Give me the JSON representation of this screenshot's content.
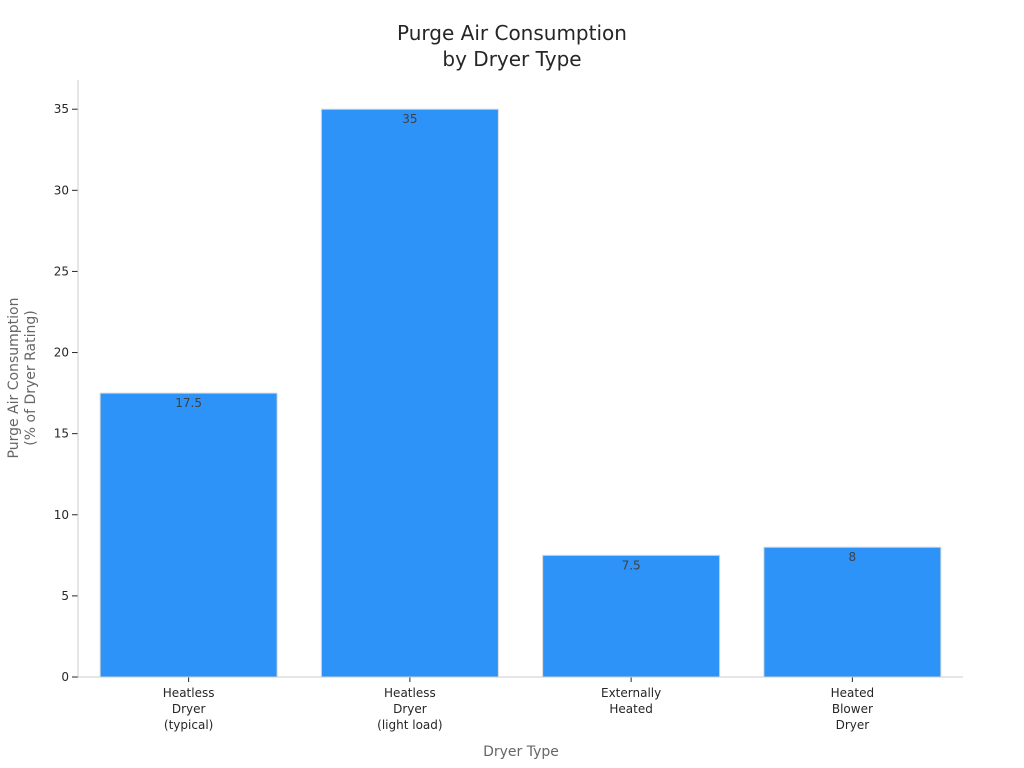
{
  "chart_data": {
    "type": "bar",
    "title": [
      "Purge Air Consumption",
      "by Dryer Type"
    ],
    "xlabel": "Dryer Type",
    "ylabel": [
      "Purge Air Consumption",
      "(% of Dryer Rating)"
    ],
    "categories": [
      [
        "Heatless",
        "Dryer",
        "(typical)"
      ],
      [
        "Heatless",
        "Dryer",
        "(light load)"
      ],
      [
        "Externally",
        "Heated"
      ],
      [
        "Heated",
        "Blower",
        "Dryer"
      ]
    ],
    "values": [
      17.5,
      35,
      7.5,
      8
    ],
    "value_labels": [
      "17.5",
      "35",
      "7.5",
      "8"
    ],
    "ylim": [
      0,
      36.8
    ],
    "yticks": [
      0,
      5,
      10,
      15,
      20,
      25,
      30,
      35
    ],
    "grid": false,
    "bar_color": "#2e93f8"
  }
}
